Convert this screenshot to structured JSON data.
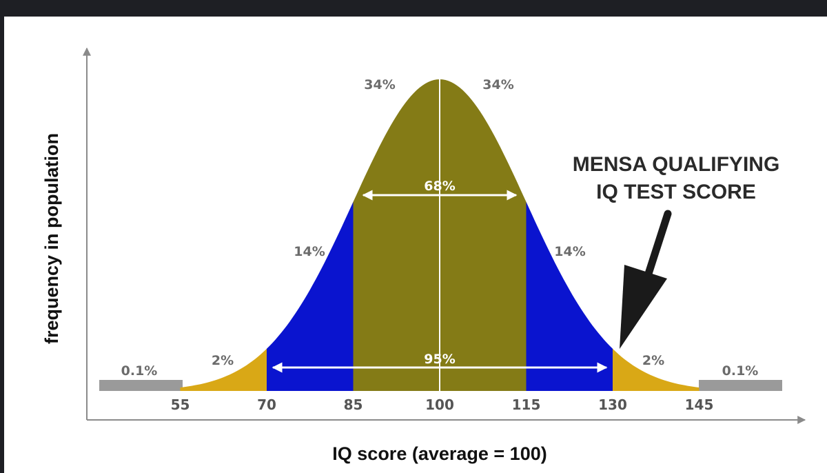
{
  "chart_data": {
    "type": "area",
    "title": "",
    "xlabel": "IQ score (average = 100)",
    "ylabel": "frequency in population",
    "mean": 100,
    "sd": 15,
    "x_ticks": [
      55,
      70,
      85,
      100,
      115,
      130,
      145
    ],
    "bands": [
      {
        "from": 85,
        "to": 115,
        "color": "#847b16"
      },
      {
        "from": 70,
        "to": 85,
        "color": "#0a14cf"
      },
      {
        "from": 115,
        "to": 130,
        "color": "#0a14cf"
      },
      {
        "from": 55,
        "to": 70,
        "color": "#d9a816"
      },
      {
        "from": 130,
        "to": 145,
        "color": "#d9a816"
      }
    ],
    "outer_bar_color": "#9a9a9a",
    "labels": {
      "center_left": "34%",
      "center_right": "34%",
      "within_1sd": "68%",
      "left_1to2sd": "14%",
      "right_1to2sd": "14%",
      "left_2to3sd": "2%",
      "right_2to3sd": "2%",
      "left_tail": "0.1%",
      "right_tail": "0.1%",
      "within_2sd": "95%"
    },
    "annotation": {
      "line1": "MENSA QUALIFYING",
      "line2": "IQ TEST SCORE",
      "points_to": 130
    }
  }
}
